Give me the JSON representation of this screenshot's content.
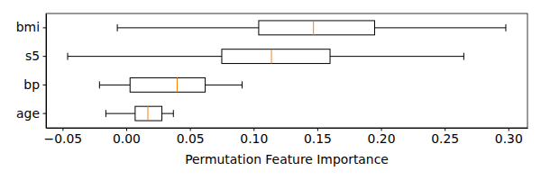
{
  "chart_data": {
    "type": "box",
    "orientation": "horizontal",
    "x_label": "Permutation Feature Importance",
    "categories": [
      "bmi",
      "s5",
      "bp",
      "age"
    ],
    "whisker_low": [
      -0.007,
      -0.046,
      -0.021,
      -0.016
    ],
    "q1": [
      0.104,
      0.075,
      0.003,
      0.007
    ],
    "median": [
      0.147,
      0.114,
      0.04,
      0.017
    ],
    "q3": [
      0.195,
      0.16,
      0.062,
      0.028
    ],
    "whisker_high": [
      0.298,
      0.265,
      0.091,
      0.037
    ],
    "xlim": [
      -0.063,
      0.315
    ],
    "xticks": [
      {
        "value": -0.05,
        "label": "−0.05"
      },
      {
        "value": 0,
        "label": "0.00"
      },
      0.05,
      {
        "value": 0.1,
        "label": "0.10"
      },
      0.15,
      {
        "value": 0.2,
        "label": "0.20"
      },
      0.25,
      {
        "value": 0.3,
        "label": "0.30"
      }
    ],
    "grid": false
  }
}
